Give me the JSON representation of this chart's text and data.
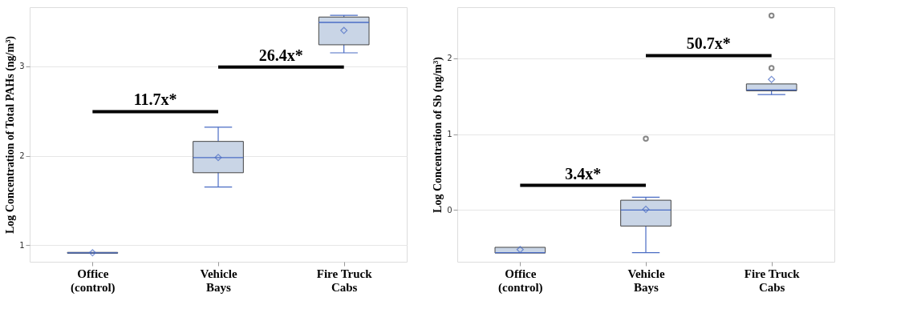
{
  "chart_data": [
    {
      "type": "box",
      "ylabel": "Log Concentration of Total PAHs (ng/m³)",
      "categories": [
        "Office\n(control)",
        "Vehicle\nBays",
        "Fire Truck\nCabs"
      ],
      "ylim": [
        0.815,
        3.66
      ],
      "yticks": [
        1,
        2,
        3
      ],
      "grid": "y",
      "series": [
        {
          "color": "#c9d5e6",
          "boxes": [
            {
              "low": 0.91,
              "q1": 0.91,
              "median": 0.915,
              "q3": 0.92,
              "high": 0.92,
              "mean": 0.915
            },
            {
              "low": 1.65,
              "q1": 1.81,
              "median": 1.98,
              "q3": 2.16,
              "high": 2.32,
              "mean": 1.98
            },
            {
              "low": 3.15,
              "q1": 3.24,
              "median": 3.49,
              "q3": 3.55,
              "high": 3.57,
              "mean": 3.4
            }
          ]
        }
      ],
      "annotations": [
        "11.7x*",
        "26.4x*"
      ]
    },
    {
      "type": "box",
      "ylabel": "Log Concentration of Sb (ng/m³)",
      "categories": [
        "Office\n(control)",
        "Vehicle\nBays",
        "Fire Truck\nCabs"
      ],
      "ylim": [
        -0.68,
        2.67
      ],
      "yticks": [
        0,
        1,
        2
      ],
      "grid": "y",
      "series": [
        {
          "color": "#c9d5e6",
          "boxes": [
            {
              "low": -0.565,
              "q1": -0.565,
              "median": -0.56,
              "q3": -0.49,
              "high": -0.49,
              "mean": -0.52
            },
            {
              "low": -0.56,
              "q1": -0.21,
              "median": 0.0,
              "q3": 0.13,
              "high": 0.17,
              "mean": 0.01,
              "outliers": [
                0.94
              ]
            },
            {
              "low": 1.52,
              "q1": 1.57,
              "median": 1.58,
              "q3": 1.66,
              "high": 1.66,
              "mean": 1.72,
              "outliers": [
                2.56,
                1.87
              ]
            }
          ]
        }
      ],
      "annotations": [
        "3.4x*",
        "50.7x*"
      ]
    }
  ]
}
